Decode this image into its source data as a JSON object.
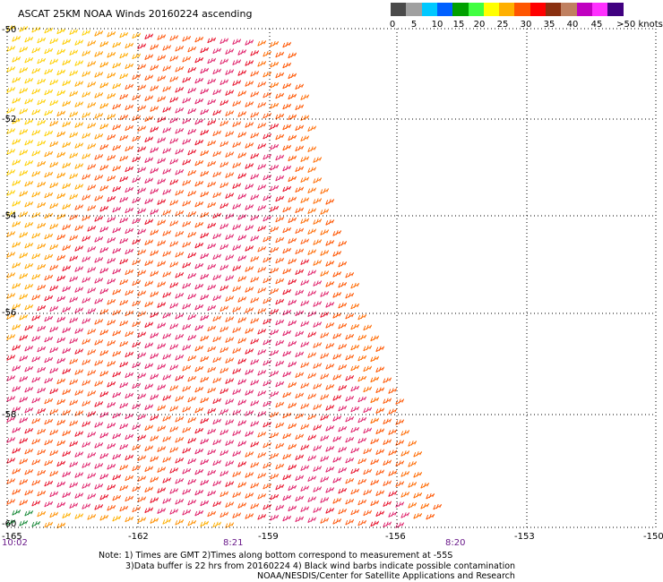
{
  "title": "ASCAT 25KM NOAA Winds 20160224 ascending",
  "legend": {
    "colors": [
      "#4a4a4a",
      "#a0a0a0",
      "#00c8ff",
      "#0060ff",
      "#00a000",
      "#40ff40",
      "#ffff00",
      "#ffb000",
      "#ff5500",
      "#ff0000",
      "#8a3010",
      "#c08060",
      "#c000c0",
      "#ff30ff",
      "#400080"
    ],
    "labels": [
      "0",
      "5",
      "10",
      "15",
      "20",
      "25",
      "30",
      "35",
      "40",
      "45",
      ">50 knots"
    ]
  },
  "map": {
    "lat_labels": [
      "-50",
      "-52",
      "-54",
      "-56",
      "-58",
      "-60"
    ],
    "lon_labels": [
      "-165",
      "-162",
      "-159",
      "-156",
      "-153",
      "-150"
    ],
    "time_labels": [
      "10:02",
      "8:21",
      "8:20"
    ]
  },
  "note": {
    "line1": "Note: 1) Times are GMT 2)Times along bottom correspond to measurement at -55S",
    "line2": "3)Data buffer is 22 hrs from 20160224 4) Black wind barbs indicate possible contamination",
    "line3": "NOAA/NESDIS/Center for Satellite Applications and Research"
  }
}
